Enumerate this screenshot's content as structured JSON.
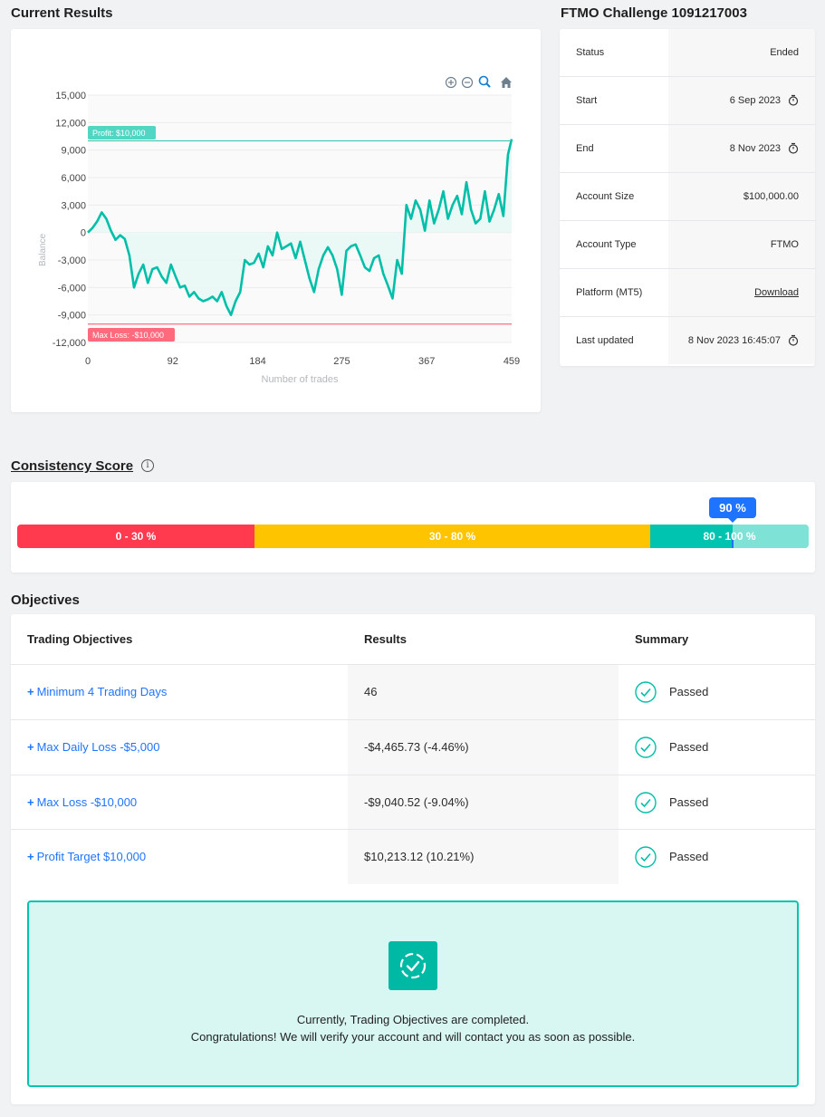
{
  "results_section": {
    "title": "Current Results"
  },
  "chart_data": {
    "type": "line",
    "xlabel": "Number of trades",
    "ylabel": "Balance",
    "ylim": [
      -12000,
      15000
    ],
    "xlim": [
      0,
      459
    ],
    "x_ticks": [
      "0",
      "92",
      "184",
      "275",
      "367",
      "459"
    ],
    "y_ticks": [
      "15,000",
      "12,000",
      "9,000",
      "6,000",
      "3,000",
      "0",
      "-3,000",
      "-6,000",
      "-9,000",
      "-12,000"
    ],
    "profit_line": {
      "label": "Profit: $10,000",
      "value": 10000
    },
    "loss_line": {
      "label": "Max Loss: -$10,000",
      "value": -10000
    },
    "line_color": "#00bfa8",
    "series": [
      {
        "x": [
          0,
          5,
          10,
          15,
          20,
          25,
          30,
          35,
          40,
          45,
          50,
          55,
          60,
          65,
          70,
          75,
          80,
          85,
          90,
          95,
          100,
          105,
          110,
          115,
          120,
          125,
          130,
          135,
          140,
          145,
          150,
          155,
          160,
          165,
          170,
          175,
          180,
          185,
          190,
          195,
          200,
          205,
          210,
          215,
          220,
          225,
          230,
          235,
          240,
          245,
          250,
          255,
          260,
          265,
          270,
          275,
          280,
          285,
          290,
          295,
          300,
          305,
          310,
          315,
          320,
          325,
          330,
          335,
          340,
          345,
          350,
          355,
          360,
          365,
          370,
          375,
          380,
          385,
          390,
          395,
          400,
          405,
          410,
          415,
          420,
          425,
          430,
          435,
          440,
          445,
          450,
          455,
          459
        ],
        "y": [
          0,
          500,
          1200,
          2200,
          1500,
          200,
          -800,
          -300,
          -700,
          -2500,
          -6000,
          -4500,
          -3500,
          -5500,
          -4000,
          -3800,
          -4800,
          -5500,
          -3500,
          -4800,
          -6000,
          -5800,
          -7000,
          -6500,
          -7200,
          -7500,
          -7300,
          -7000,
          -7500,
          -6500,
          -8000,
          -9000,
          -7500,
          -6500,
          -3000,
          -3500,
          -3300,
          -2300,
          -3800,
          -1500,
          -2500,
          0,
          -1800,
          -1500,
          -1200,
          -2800,
          -1000,
          -3000,
          -5000,
          -6500,
          -4000,
          -2500,
          -1600,
          -2500,
          -4000,
          -6800,
          -2000,
          -1500,
          -1300,
          -2500,
          -3800,
          -4200,
          -2800,
          -2500,
          -4500,
          -5800,
          -7200,
          -3000,
          -4500,
          3000,
          1500,
          3500,
          2500,
          200,
          3500,
          1000,
          2500,
          4500,
          1500,
          3000,
          4000,
          2000,
          5500,
          2500,
          1000,
          1500,
          4500,
          1200,
          2500,
          4200,
          1800,
          8500,
          10200
        ]
      }
    ]
  },
  "account": {
    "title": "FTMO Challenge 1091217003",
    "rows": [
      {
        "label": "Status",
        "value": "Ended"
      },
      {
        "label": "Start",
        "value": "6 Sep 2023"
      },
      {
        "label": "End",
        "value": "8 Nov 2023"
      },
      {
        "label": "Account Size",
        "value": "$100,000.00"
      },
      {
        "label": "Account Type",
        "value": "FTMO"
      },
      {
        "label": "Platform (MT5)",
        "value": "Download"
      },
      {
        "label": "Last updated",
        "value": "8 Nov 2023 16:45:07"
      }
    ]
  },
  "consistency": {
    "title": "Consistency Score",
    "info": "i",
    "score_label": "90 %",
    "score_value": 90,
    "segments": [
      "0 - 30 %",
      "30 - 80 %",
      "80 - 100 %"
    ],
    "colors": {
      "low": "#ff3a4f",
      "mid": "#ffc400",
      "high": "#00c4b0",
      "badge": "#1f74ff"
    }
  },
  "objectives": {
    "title": "Objectives",
    "headers": {
      "objective": "Trading Objectives",
      "results": "Results",
      "summary": "Summary"
    },
    "rows": [
      {
        "name": "Minimum 4 Trading Days",
        "result": "46",
        "status": "Passed"
      },
      {
        "name": "Max Daily Loss -$5,000",
        "result": "-$4,465.73 (-4.46%)",
        "status": "Passed"
      },
      {
        "name": "Max Loss -$10,000",
        "result": "-$9,040.52 (-9.04%)",
        "status": "Passed"
      },
      {
        "name": "Profit Target $10,000",
        "result": "$10,213.12 (10.21%)",
        "status": "Passed"
      }
    ],
    "plus": "+",
    "message_line1": "Currently, Trading Objectives are completed.",
    "message_line2": "Congratulations! We will verify your account and will contact you as soon as possible."
  }
}
